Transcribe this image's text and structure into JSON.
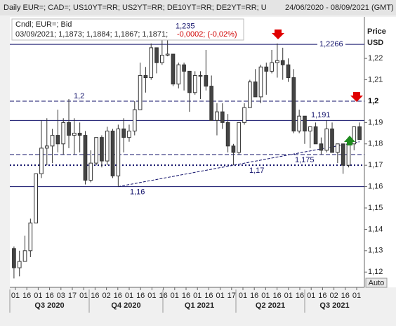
{
  "header": {
    "title": "Daily EUR=; CAD=; US10YT=RR; US2YT=RR; DE10YT=RR; DE2YT=RR; U",
    "range": "24/06/2020 - 08/09/2021 (GMT)"
  },
  "legend": {
    "line1": "Cndl; EUR=; Bid",
    "line2": "03/09/2021; 1,1873; 1,1884; 1,1867; 1,1871;",
    "change": "-0,0002; (-0,02%)"
  },
  "axis_title": "Price",
  "axis_unit": "USD",
  "auto_button": "Auto",
  "chart_data": {
    "type": "candlestick",
    "open": [
      1.131,
      1.122,
      1.125,
      1.13,
      1.143,
      1.166,
      1.178,
      1.179,
      1.184,
      1.18,
      1.19,
      1.184,
      1.185,
      1.184,
      1.163,
      1.171,
      1.183,
      1.172,
      1.186,
      1.165,
      1.187,
      1.183,
      1.186,
      1.196,
      1.212,
      1.211,
      1.225,
      1.218,
      1.2215,
      1.222,
      1.208,
      1.217,
      1.214,
      1.204,
      1.212,
      1.212,
      1.207,
      1.191,
      1.195,
      1.19,
      1.179,
      1.176,
      1.19,
      1.197,
      1.209,
      1.202,
      1.216,
      1.214,
      1.218,
      1.219,
      1.217,
      1.211,
      1.186,
      1.193,
      1.186,
      1.188,
      1.18,
      1.177,
      1.187,
      1.176,
      1.18,
      1.17,
      1.18,
      1.188
    ],
    "high": [
      1.132,
      1.13,
      1.137,
      1.145,
      1.165,
      1.191,
      1.192,
      1.187,
      1.196,
      1.192,
      1.201,
      1.192,
      1.19,
      1.186,
      1.177,
      1.183,
      1.184,
      1.188,
      1.187,
      1.189,
      1.192,
      1.189,
      1.2,
      1.218,
      1.216,
      1.227,
      1.225,
      1.231,
      1.235,
      1.222,
      1.218,
      1.218,
      1.214,
      1.214,
      1.214,
      1.224,
      1.212,
      1.199,
      1.199,
      1.194,
      1.18,
      1.19,
      1.199,
      1.21,
      1.215,
      1.217,
      1.218,
      1.224,
      1.227,
      1.225,
      1.22,
      1.215,
      1.196,
      1.193,
      1.188,
      1.19,
      1.183,
      1.191,
      1.19,
      1.18,
      1.18,
      1.18,
      1.188,
      1.19
    ],
    "low": [
      1.117,
      1.118,
      1.125,
      1.127,
      1.143,
      1.164,
      1.17,
      1.171,
      1.176,
      1.175,
      1.178,
      1.175,
      1.176,
      1.161,
      1.162,
      1.17,
      1.169,
      1.17,
      1.164,
      1.16,
      1.176,
      1.181,
      1.184,
      1.196,
      1.204,
      1.21,
      1.213,
      1.217,
      1.221,
      1.207,
      1.206,
      1.205,
      1.195,
      1.203,
      1.201,
      1.205,
      1.191,
      1.184,
      1.187,
      1.176,
      1.17,
      1.175,
      1.189,
      1.197,
      1.202,
      1.199,
      1.203,
      1.213,
      1.211,
      1.21,
      1.209,
      1.185,
      1.185,
      1.18,
      1.178,
      1.18,
      1.175,
      1.176,
      1.176,
      1.171,
      1.166,
      1.169,
      1.177,
      1.182
    ],
    "close": [
      1.122,
      1.125,
      1.13,
      1.143,
      1.166,
      1.178,
      1.179,
      1.184,
      1.18,
      1.19,
      1.184,
      1.185,
      1.184,
      1.163,
      1.171,
      1.183,
      1.172,
      1.186,
      1.165,
      1.187,
      1.183,
      1.186,
      1.196,
      1.212,
      1.211,
      1.225,
      1.218,
      1.2215,
      1.222,
      1.208,
      1.217,
      1.214,
      1.204,
      1.212,
      1.212,
      1.207,
      1.191,
      1.195,
      1.19,
      1.179,
      1.176,
      1.19,
      1.197,
      1.209,
      1.202,
      1.216,
      1.214,
      1.218,
      1.219,
      1.217,
      1.211,
      1.186,
      1.193,
      1.186,
      1.188,
      1.18,
      1.177,
      1.187,
      1.176,
      1.18,
      1.17,
      1.18,
      1.188,
      1.182
    ],
    "ylim": [
      1.1135,
      1.2355
    ],
    "yticks": [
      {
        "value": 1.12,
        "label": "1,12"
      },
      {
        "value": 1.13,
        "label": "1,13"
      },
      {
        "value": 1.14,
        "label": "1,14"
      },
      {
        "value": 1.15,
        "label": "1,15"
      },
      {
        "value": 1.16,
        "label": "1,16"
      },
      {
        "value": 1.17,
        "label": "1,17"
      },
      {
        "value": 1.18,
        "label": "1,18"
      },
      {
        "value": 1.19,
        "label": "1,19"
      },
      {
        "value": 1.21,
        "label": "1,21"
      },
      {
        "value": 1.22,
        "label": "1,22"
      }
    ],
    "date_ticks": [
      "01",
      "16",
      "01",
      "16",
      "03",
      "17",
      "01",
      "16",
      "02",
      "16",
      "01",
      "16",
      "01",
      "16",
      "01",
      "16",
      "01",
      "16",
      "01",
      "17",
      "01",
      "16",
      "01",
      "16",
      "01",
      "16",
      "01",
      "16",
      "02",
      "16",
      "01"
    ],
    "quarters": [
      "Q3 2020",
      "Q4 2020",
      "Q1 2021",
      "Q2 2021",
      "Q3 2021"
    ],
    "levels": [
      {
        "value": 1.2266,
        "label": "1,2266",
        "style": "solid"
      },
      {
        "value": 1.2,
        "label": "1,2",
        "style": "dashed"
      },
      {
        "value": 1.191,
        "label": "1,191",
        "style": "solid"
      },
      {
        "value": 1.175,
        "label": "1,175",
        "style": "dashed"
      },
      {
        "value": 1.17,
        "label": "1,17",
        "style": "dotted"
      },
      {
        "value": 1.16,
        "label": "1,16",
        "style": "solid"
      }
    ],
    "peak": {
      "value": 1.235,
      "label": "1,235"
    },
    "trendline": {
      "x": [
        19,
        63
      ],
      "values": [
        1.16,
        1.181
      ]
    }
  }
}
